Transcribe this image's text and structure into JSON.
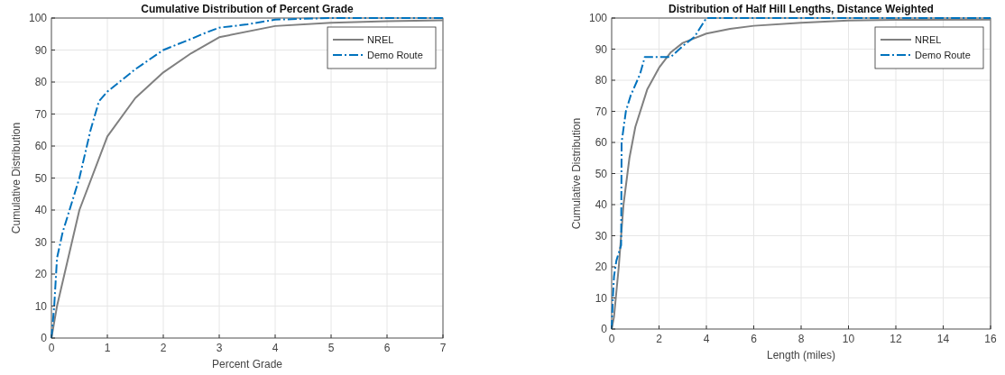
{
  "chart_data": [
    {
      "type": "line",
      "title": "Cumulative Distribution of Percent Grade",
      "xlabel": "Percent Grade",
      "ylabel": "Cumulative Distribution",
      "xlim": [
        0,
        7
      ],
      "xticks": [
        0,
        1,
        2,
        3,
        4,
        5,
        6,
        7
      ],
      "ylim": [
        0,
        100
      ],
      "yticks": [
        0,
        10,
        20,
        30,
        40,
        50,
        60,
        70,
        80,
        90,
        100
      ],
      "grid": true,
      "legend": "top right",
      "series": [
        {
          "name": "NREL",
          "color": "#808080",
          "line_style": "solid",
          "x": [
            0,
            0.1,
            0.5,
            1,
            1.5,
            2,
            2.5,
            3,
            4,
            5,
            6,
            7
          ],
          "values": [
            0,
            10,
            40,
            63,
            75,
            83,
            89,
            94,
            97.5,
            98.5,
            99,
            99.3
          ]
        },
        {
          "name": "Demo Route",
          "color": "#0072bd",
          "line_style": "dashed",
          "x": [
            0,
            0.05,
            0.1,
            0.2,
            0.5,
            0.7,
            0.85,
            1,
            1.5,
            2,
            2.5,
            2.7,
            3,
            3.5,
            4,
            5,
            7
          ],
          "values": [
            0,
            10,
            25,
            33,
            50,
            65,
            74,
            77,
            84,
            90,
            93.5,
            95,
            97,
            98,
            99.5,
            100,
            100
          ]
        }
      ]
    },
    {
      "type": "line",
      "title": "Distribution of Half Hill Lengths, Distance Weighted",
      "xlabel": "Length (miles)",
      "ylabel": "Cumulative Distribution",
      "xlim": [
        0,
        16
      ],
      "xticks": [
        0,
        2,
        4,
        6,
        8,
        10,
        12,
        14,
        16
      ],
      "ylim": [
        0,
        100
      ],
      "yticks": [
        0,
        10,
        20,
        30,
        40,
        50,
        60,
        70,
        80,
        90,
        100
      ],
      "grid": true,
      "legend": "top right",
      "series": [
        {
          "name": "NREL",
          "color": "#808080",
          "line_style": "solid",
          "x": [
            0,
            0.1,
            0.3,
            0.5,
            0.75,
            1,
            1.5,
            2,
            2.5,
            3,
            4,
            5,
            6,
            8,
            10,
            12,
            16
          ],
          "values": [
            0,
            4,
            20,
            40,
            55,
            65,
            77,
            84,
            89,
            92,
            95,
            96.5,
            97.5,
            98.5,
            99.2,
            99.4,
            99.5
          ]
        },
        {
          "name": "Demo Route",
          "color": "#0072bd",
          "line_style": "dashed",
          "x": [
            0,
            0.05,
            0.1,
            0.2,
            0.4,
            0.42,
            0.6,
            0.8,
            1.2,
            1.4,
            2.5,
            3,
            3.5,
            4,
            16
          ],
          "values": [
            0,
            10,
            17,
            22,
            27,
            60,
            70,
            75,
            82,
            87.5,
            87.5,
            91,
            94,
            100,
            100
          ]
        }
      ]
    }
  ]
}
